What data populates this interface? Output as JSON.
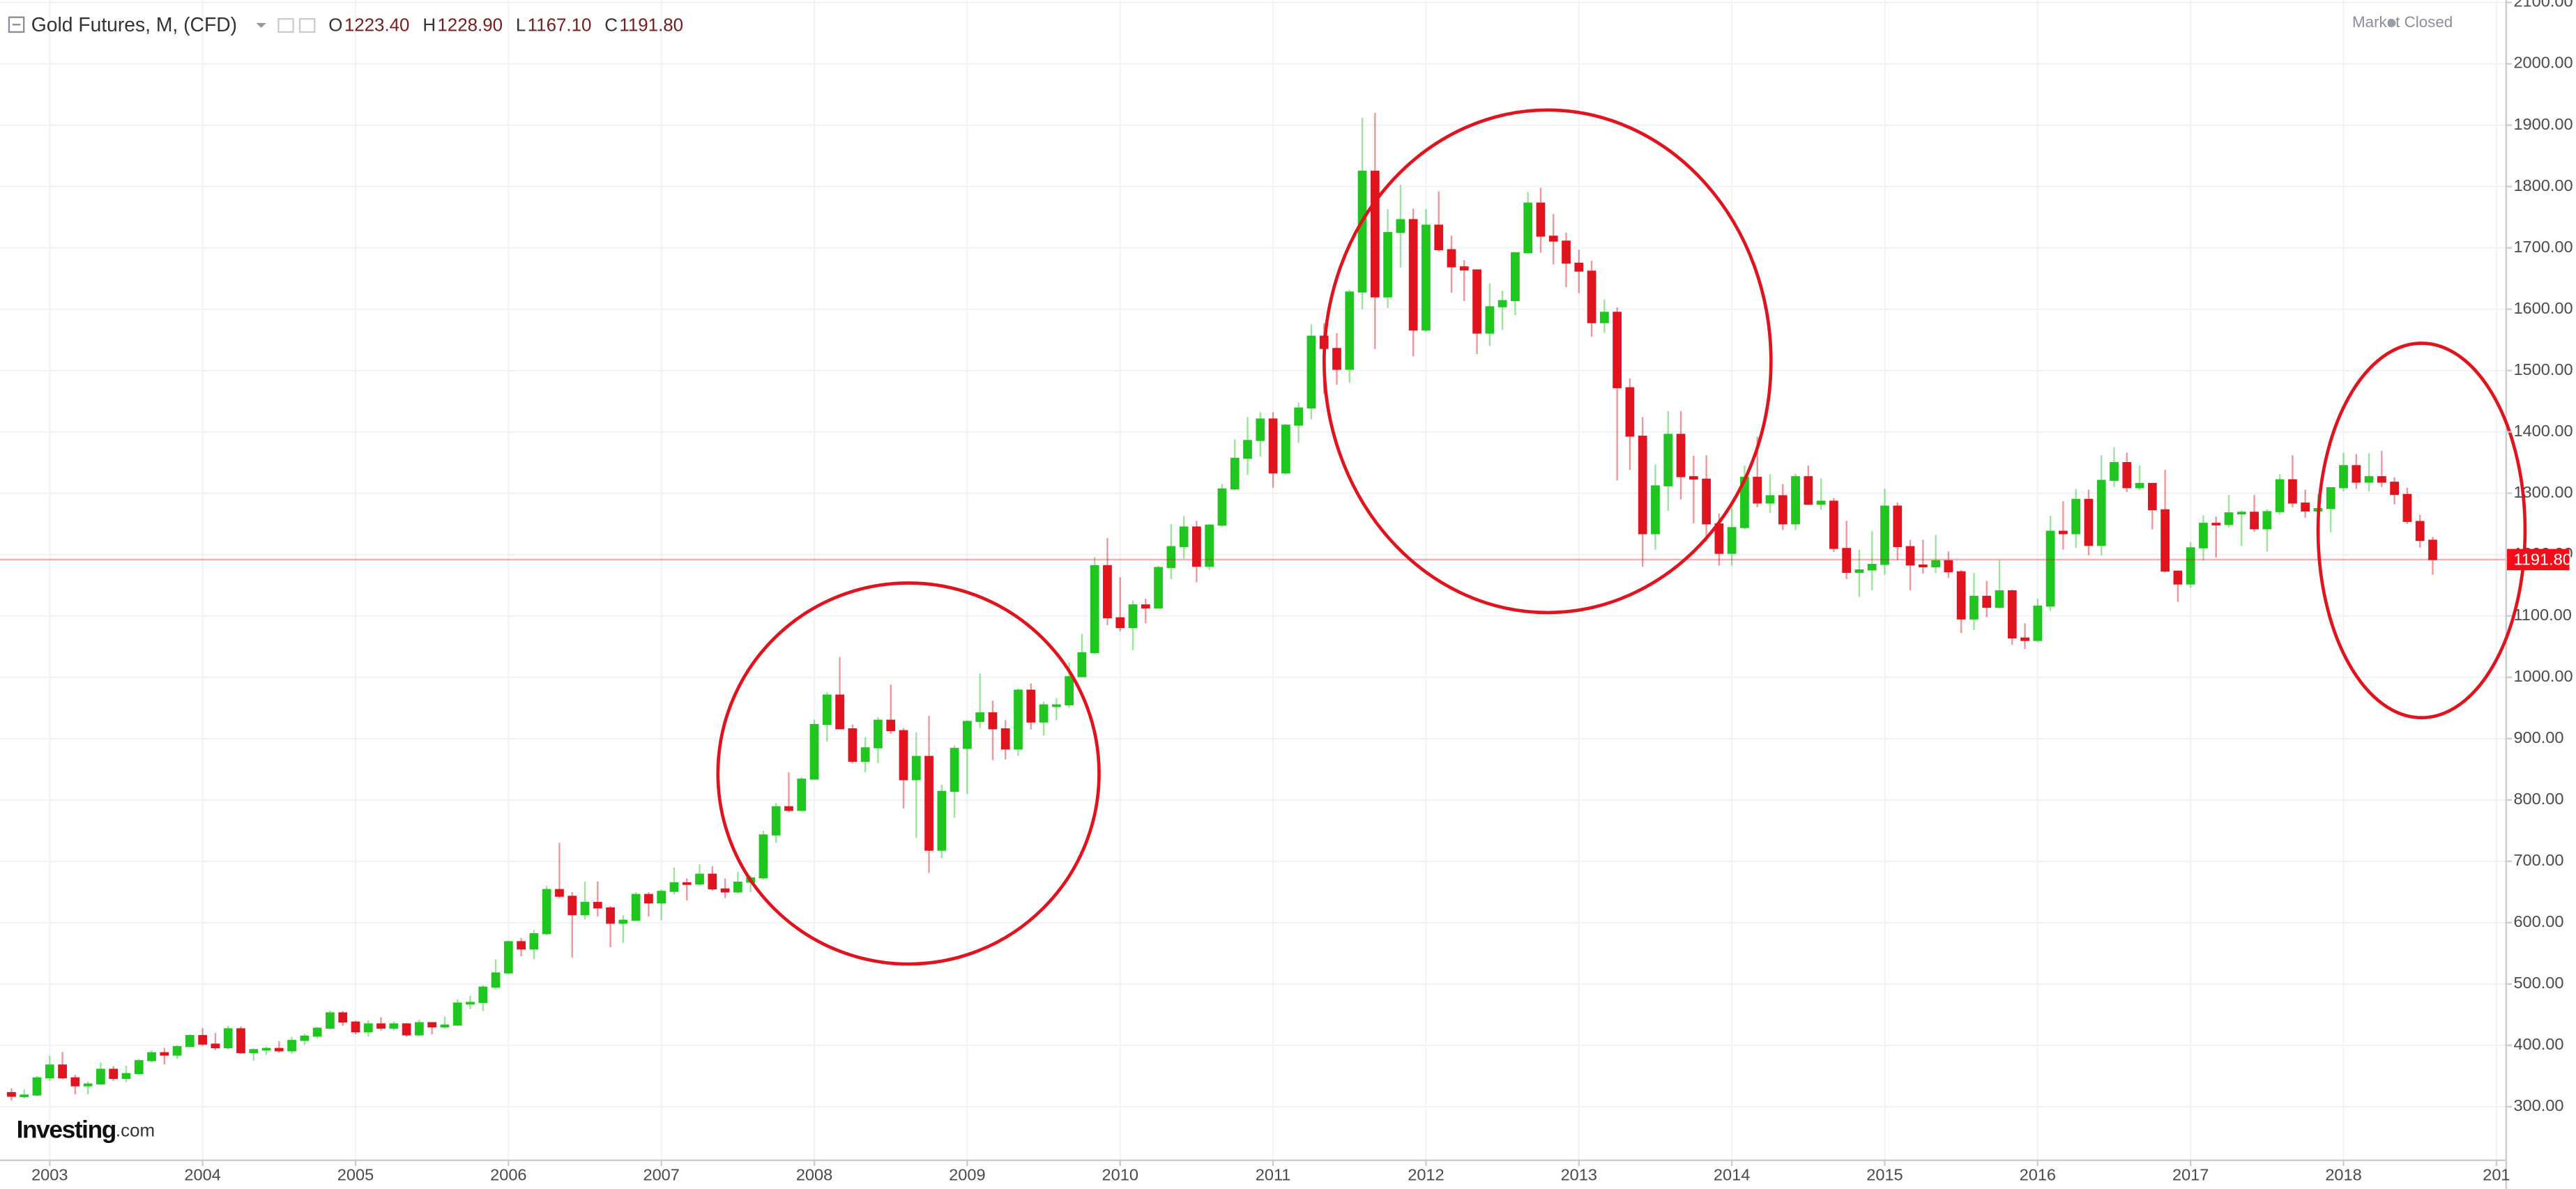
{
  "chart_data": {
    "type": "candlestick",
    "title": "Gold Futures, M, (CFD)",
    "ohlc_header": [
      {
        "label": "O",
        "value": "1223.40"
      },
      {
        "label": "H",
        "value": "1228.90"
      },
      {
        "label": "L",
        "value": "1167.10"
      },
      {
        "label": "C",
        "value": "1191.80"
      }
    ],
    "status": "Market Closed",
    "brand": {
      "name": "Investing",
      "suffix": ".com"
    },
    "up_color": "#1fc61f",
    "down_color": "#e0141e",
    "last_price": {
      "value": 1191.8,
      "label": "1191.80",
      "color": "#f20d1a"
    },
    "grid": true,
    "xlim": [
      -0.9,
      195.7
    ],
    "xticks": [
      {
        "value": 3,
        "label": "2003"
      },
      {
        "value": 15,
        "label": "2004"
      },
      {
        "value": 27,
        "label": "2005"
      },
      {
        "value": 39,
        "label": "2006"
      },
      {
        "value": 51,
        "label": "2007"
      },
      {
        "value": 63,
        "label": "2008"
      },
      {
        "value": 75,
        "label": "2009"
      },
      {
        "value": 87,
        "label": "2010"
      },
      {
        "value": 99,
        "label": "2011"
      },
      {
        "value": 111,
        "label": "2012"
      },
      {
        "value": 123,
        "label": "2013"
      },
      {
        "value": 135,
        "label": "2014"
      },
      {
        "value": 147,
        "label": "2015"
      },
      {
        "value": 159,
        "label": "2016"
      },
      {
        "value": 171,
        "label": "2017"
      },
      {
        "value": 183,
        "label": "2018"
      },
      {
        "value": 195,
        "label": "201"
      }
    ],
    "ylim": [
      214,
      2104
    ],
    "yticks": [
      {
        "value": 300,
        "label": "300.00"
      },
      {
        "value": 400,
        "label": "400.00"
      },
      {
        "value": 500,
        "label": "500.00"
      },
      {
        "value": 600,
        "label": "600.00"
      },
      {
        "value": 700,
        "label": "700.00"
      },
      {
        "value": 800,
        "label": "800.00"
      },
      {
        "value": 900,
        "label": "900.00"
      },
      {
        "value": 1000,
        "label": "1000.00"
      },
      {
        "value": 1100,
        "label": "1100.00"
      },
      {
        "value": 1200,
        "label": "1200.00"
      },
      {
        "value": 1300,
        "label": "1300.00"
      },
      {
        "value": 1400,
        "label": "1400.00"
      },
      {
        "value": 1500,
        "label": "1500.00"
      },
      {
        "value": 1600,
        "label": "1600.00"
      },
      {
        "value": 1700,
        "label": "1700.00"
      },
      {
        "value": 1800,
        "label": "1800.00"
      },
      {
        "value": 1900,
        "label": "1900.00"
      },
      {
        "value": 2000,
        "label": "2000.00"
      },
      {
        "value": 2100,
        "label": "2100.00"
      }
    ],
    "ohlc": [
      [
        323,
        330,
        310,
        317
      ],
      [
        317,
        328,
        313,
        319
      ],
      [
        319,
        350,
        317,
        347
      ],
      [
        347,
        383,
        342,
        368
      ],
      [
        368,
        389,
        345,
        347
      ],
      [
        347,
        352,
        320,
        334
      ],
      [
        334,
        341,
        320,
        337
      ],
      [
        337,
        372,
        336,
        361
      ],
      [
        361,
        366,
        342,
        346
      ],
      [
        346,
        367,
        340,
        354
      ],
      [
        354,
        378,
        352,
        375
      ],
      [
        375,
        392,
        372,
        388
      ],
      [
        388,
        396,
        369,
        384
      ],
      [
        384,
        400,
        378,
        398
      ],
      [
        398,
        418,
        397,
        416
      ],
      [
        416,
        428,
        399,
        402
      ],
      [
        402,
        420,
        392,
        396
      ],
      [
        396,
        432,
        393,
        427
      ],
      [
        427,
        431,
        386,
        388
      ],
      [
        388,
        395,
        375,
        393
      ],
      [
        393,
        398,
        385,
        395
      ],
      [
        395,
        407,
        388,
        391
      ],
      [
        391,
        414,
        386,
        408
      ],
      [
        408,
        419,
        401,
        415
      ],
      [
        415,
        430,
        411,
        428
      ],
      [
        428,
        457,
        426,
        453
      ],
      [
        453,
        456,
        432,
        438
      ],
      [
        438,
        440,
        418,
        422
      ],
      [
        422,
        441,
        414,
        435
      ],
      [
        435,
        446,
        424,
        428
      ],
      [
        428,
        439,
        424,
        435
      ],
      [
        435,
        436,
        414,
        417
      ],
      [
        417,
        442,
        415,
        437
      ],
      [
        437,
        438,
        418,
        430
      ],
      [
        430,
        447,
        427,
        433
      ],
      [
        433,
        475,
        432,
        469
      ],
      [
        469,
        481,
        459,
        470
      ],
      [
        470,
        498,
        456,
        495
      ],
      [
        495,
        540,
        491,
        518
      ],
      [
        518,
        571,
        516,
        569
      ],
      [
        569,
        575,
        545,
        557
      ],
      [
        557,
        588,
        540,
        582
      ],
      [
        582,
        660,
        579,
        654
      ],
      [
        654,
        730,
        640,
        643
      ],
      [
        643,
        650,
        543,
        613
      ],
      [
        613,
        667,
        605,
        633
      ],
      [
        633,
        667,
        610,
        624
      ],
      [
        624,
        627,
        560,
        599
      ],
      [
        599,
        612,
        567,
        604
      ],
      [
        604,
        650,
        603,
        646
      ],
      [
        646,
        650,
        610,
        632
      ],
      [
        632,
        654,
        604,
        651
      ],
      [
        651,
        690,
        646,
        665
      ],
      [
        665,
        672,
        636,
        663
      ],
      [
        663,
        695,
        660,
        679
      ],
      [
        679,
        692,
        652,
        655
      ],
      [
        655,
        672,
        640,
        650
      ],
      [
        650,
        683,
        648,
        666
      ],
      [
        666,
        677,
        650,
        673
      ],
      [
        673,
        750,
        670,
        743
      ],
      [
        743,
        795,
        730,
        789
      ],
      [
        789,
        845,
        780,
        783
      ],
      [
        783,
        837,
        781,
        834
      ],
      [
        834,
        931,
        834,
        923
      ],
      [
        923,
        976,
        895,
        971
      ],
      [
        971,
        1033,
        915,
        916
      ],
      [
        916,
        923,
        860,
        863
      ],
      [
        863,
        902,
        845,
        885
      ],
      [
        885,
        935,
        860,
        930
      ],
      [
        930,
        988,
        908,
        913
      ],
      [
        913,
        917,
        786,
        833
      ],
      [
        833,
        910,
        738,
        871
      ],
      [
        871,
        937,
        681,
        718
      ],
      [
        718,
        825,
        705,
        814
      ],
      [
        814,
        889,
        771,
        884
      ],
      [
        884,
        930,
        810,
        928
      ],
      [
        928,
        1006,
        917,
        942
      ],
      [
        942,
        962,
        865,
        916
      ],
      [
        916,
        930,
        866,
        883
      ],
      [
        883,
        982,
        872,
        979
      ],
      [
        979,
        990,
        915,
        927
      ],
      [
        927,
        960,
        905,
        955
      ],
      [
        955,
        966,
        930,
        955
      ],
      [
        955,
        1024,
        950,
        1001
      ],
      [
        1001,
        1071,
        1000,
        1040
      ],
      [
        1040,
        1196,
        1038,
        1182
      ],
      [
        1182,
        1227,
        1085,
        1097
      ],
      [
        1097,
        1163,
        1075,
        1081
      ],
      [
        1081,
        1125,
        1044,
        1118
      ],
      [
        1118,
        1128,
        1088,
        1113
      ],
      [
        1113,
        1182,
        1112,
        1179
      ],
      [
        1179,
        1250,
        1160,
        1213
      ],
      [
        1213,
        1263,
        1193,
        1245
      ],
      [
        1245,
        1255,
        1155,
        1181
      ],
      [
        1181,
        1250,
        1175,
        1248
      ],
      [
        1248,
        1315,
        1245,
        1307
      ],
      [
        1307,
        1388,
        1305,
        1357
      ],
      [
        1357,
        1424,
        1330,
        1386
      ],
      [
        1386,
        1432,
        1360,
        1421
      ],
      [
        1421,
        1432,
        1309,
        1333
      ],
      [
        1333,
        1413,
        1330,
        1411
      ],
      [
        1411,
        1448,
        1382,
        1439
      ],
      [
        1439,
        1575,
        1420,
        1556
      ],
      [
        1556,
        1577,
        1462,
        1536
      ],
      [
        1536,
        1561,
        1477,
        1502
      ],
      [
        1502,
        1632,
        1480,
        1628
      ],
      [
        1628,
        1912,
        1600,
        1825
      ],
      [
        1825,
        1920,
        1535,
        1620
      ],
      [
        1620,
        1763,
        1602,
        1725
      ],
      [
        1725,
        1803,
        1668,
        1746
      ],
      [
        1746,
        1764,
        1523,
        1566
      ],
      [
        1566,
        1763,
        1563,
        1737
      ],
      [
        1737,
        1792,
        1694,
        1697
      ],
      [
        1697,
        1720,
        1627,
        1669
      ],
      [
        1669,
        1680,
        1613,
        1664
      ],
      [
        1664,
        1665,
        1527,
        1561
      ],
      [
        1561,
        1642,
        1540,
        1604
      ],
      [
        1604,
        1630,
        1566,
        1614
      ],
      [
        1614,
        1692,
        1590,
        1692
      ],
      [
        1692,
        1791,
        1690,
        1773
      ],
      [
        1773,
        1798,
        1692,
        1719
      ],
      [
        1719,
        1755,
        1673,
        1711
      ],
      [
        1711,
        1725,
        1636,
        1675
      ],
      [
        1675,
        1697,
        1626,
        1662
      ],
      [
        1662,
        1679,
        1555,
        1578
      ],
      [
        1578,
        1616,
        1562,
        1595
      ],
      [
        1595,
        1603,
        1321,
        1472
      ],
      [
        1472,
        1487,
        1338,
        1393
      ],
      [
        1393,
        1424,
        1180,
        1234
      ],
      [
        1234,
        1347,
        1208,
        1312
      ],
      [
        1312,
        1434,
        1271,
        1396
      ],
      [
        1396,
        1434,
        1290,
        1327
      ],
      [
        1327,
        1361,
        1251,
        1323
      ],
      [
        1323,
        1362,
        1221,
        1250
      ],
      [
        1250,
        1267,
        1182,
        1202
      ],
      [
        1202,
        1280,
        1182,
        1244
      ],
      [
        1244,
        1345,
        1241,
        1326
      ],
      [
        1326,
        1392,
        1277,
        1284
      ],
      [
        1284,
        1331,
        1268,
        1296
      ],
      [
        1296,
        1315,
        1240,
        1250
      ],
      [
        1250,
        1332,
        1240,
        1327
      ],
      [
        1327,
        1345,
        1281,
        1282
      ],
      [
        1282,
        1324,
        1273,
        1287
      ],
      [
        1287,
        1292,
        1204,
        1210
      ],
      [
        1210,
        1255,
        1160,
        1171
      ],
      [
        1171,
        1208,
        1131,
        1175
      ],
      [
        1175,
        1238,
        1142,
        1184
      ],
      [
        1184,
        1307,
        1167,
        1279
      ],
      [
        1279,
        1285,
        1191,
        1213
      ],
      [
        1213,
        1224,
        1142,
        1183
      ],
      [
        1183,
        1224,
        1169,
        1180
      ],
      [
        1180,
        1232,
        1170,
        1190
      ],
      [
        1190,
        1205,
        1162,
        1172
      ],
      [
        1172,
        1175,
        1072,
        1095
      ],
      [
        1095,
        1170,
        1077,
        1132
      ],
      [
        1132,
        1157,
        1098,
        1114
      ],
      [
        1114,
        1191,
        1112,
        1141
      ],
      [
        1141,
        1143,
        1053,
        1064
      ],
      [
        1064,
        1088,
        1046,
        1060
      ],
      [
        1060,
        1128,
        1057,
        1116
      ],
      [
        1116,
        1263,
        1108,
        1238
      ],
      [
        1238,
        1287,
        1208,
        1234
      ],
      [
        1234,
        1307,
        1211,
        1290
      ],
      [
        1290,
        1306,
        1199,
        1215
      ],
      [
        1215,
        1362,
        1199,
        1321
      ],
      [
        1321,
        1375,
        1310,
        1350
      ],
      [
        1350,
        1366,
        1302,
        1309
      ],
      [
        1309,
        1345,
        1305,
        1316
      ],
      [
        1316,
        1317,
        1241,
        1273
      ],
      [
        1273,
        1338,
        1171,
        1173
      ],
      [
        1173,
        1174,
        1123,
        1152
      ],
      [
        1152,
        1220,
        1146,
        1211
      ],
      [
        1211,
        1264,
        1190,
        1251
      ],
      [
        1251,
        1262,
        1195,
        1249
      ],
      [
        1249,
        1297,
        1244,
        1268
      ],
      [
        1268,
        1272,
        1214,
        1269
      ],
      [
        1269,
        1297,
        1237,
        1242
      ],
      [
        1242,
        1274,
        1205,
        1270
      ],
      [
        1270,
        1331,
        1265,
        1322
      ],
      [
        1322,
        1362,
        1277,
        1284
      ],
      [
        1284,
        1306,
        1260,
        1271
      ],
      [
        1271,
        1299,
        1265,
        1275
      ],
      [
        1275,
        1310,
        1236,
        1309
      ],
      [
        1309,
        1366,
        1303,
        1345
      ],
      [
        1345,
        1364,
        1307,
        1318
      ],
      [
        1318,
        1365,
        1303,
        1327
      ],
      [
        1327,
        1369,
        1310,
        1318
      ],
      [
        1318,
        1326,
        1282,
        1298
      ],
      [
        1298,
        1309,
        1250,
        1254
      ],
      [
        1254,
        1265,
        1211,
        1223
      ],
      [
        1223.4,
        1228.9,
        1167.1,
        1191.8
      ]
    ]
  }
}
